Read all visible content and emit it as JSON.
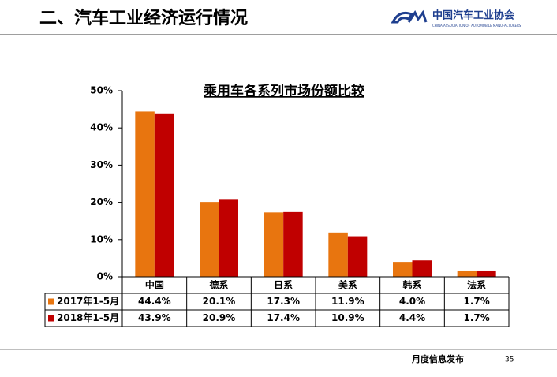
{
  "header": {
    "title": "二、汽车工业经济运行情况",
    "logo": "中国汽车工业协会",
    "logo_sub": "CHINA ASSOCIATION OF AUTOMOBILE MANUFACTURERS"
  },
  "footer": {
    "label": "月度信息发布",
    "page": "35"
  },
  "chart_data": {
    "type": "bar",
    "title": "乘用车各系列市场份额比较",
    "categories": [
      "中国",
      "德系",
      "日系",
      "美系",
      "韩系",
      "法系"
    ],
    "series": [
      {
        "name": "2017年1-5月",
        "color": "#e8750f",
        "values": [
          44.4,
          20.1,
          17.3,
          11.9,
          4.0,
          1.7
        ],
        "value_labels": [
          "44.4%",
          "20.1%",
          "17.3%",
          "11.9%",
          "4.0%",
          "1.7%"
        ]
      },
      {
        "name": "2018年1-5月",
        "color": "#c00000",
        "values": [
          43.9,
          20.9,
          17.4,
          10.9,
          4.4,
          1.7
        ],
        "value_labels": [
          "43.9%",
          "20.9%",
          "17.4%",
          "10.9%",
          "4.4%",
          "1.7%"
        ]
      }
    ],
    "ylim": [
      0,
      50
    ],
    "yticks": [
      {
        "value": 0,
        "label": "0%"
      },
      {
        "value": 10,
        "label": "10%"
      },
      {
        "value": 20,
        "label": "20%"
      },
      {
        "value": 30,
        "label": "30%"
      },
      {
        "value": 40,
        "label": "40%"
      },
      {
        "value": 50,
        "label": "50%"
      }
    ],
    "grid": false
  }
}
